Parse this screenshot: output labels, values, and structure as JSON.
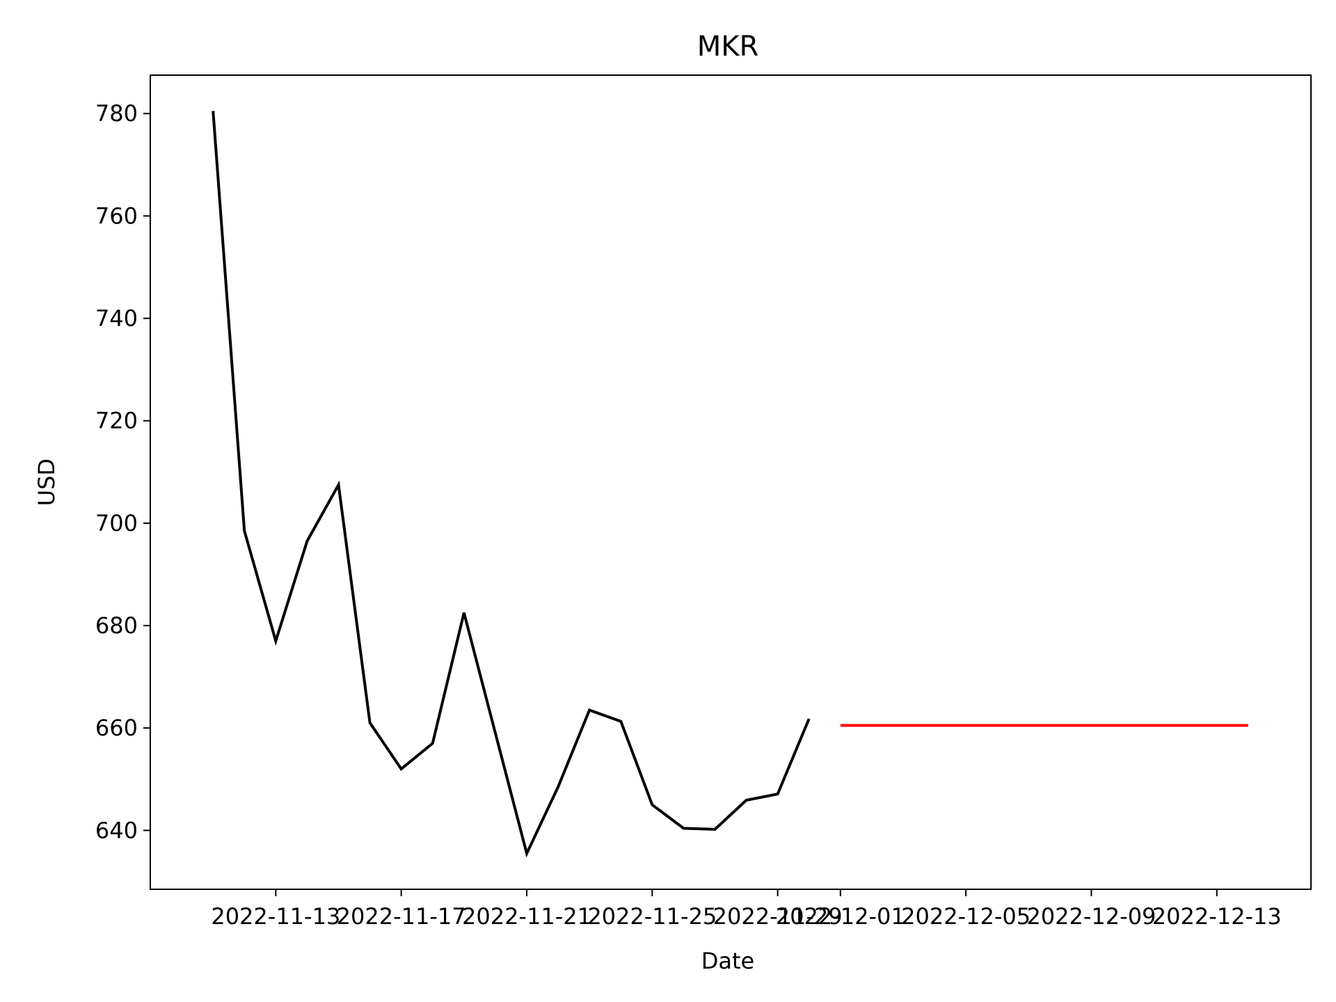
{
  "chart_data": {
    "type": "line",
    "title": "MKR",
    "xlabel": "Date",
    "ylabel": "USD",
    "xlim": [
      "2022-11-09",
      "2022-12-16"
    ],
    "ylim": [
      628.5,
      787.5
    ],
    "x_ticks": [
      "2022-11-13",
      "2022-11-17",
      "2022-11-21",
      "2022-11-25",
      "2022-11-29",
      "2022-12-01",
      "2022-12-05",
      "2022-12-09",
      "2022-12-13"
    ],
    "y_ticks": [
      640,
      660,
      680,
      700,
      720,
      740,
      760,
      780
    ],
    "grid": false,
    "legend": "none",
    "series": [
      {
        "color": "#000000",
        "x": [
          "2022-11-11",
          "2022-11-12",
          "2022-11-13",
          "2022-11-14",
          "2022-11-15",
          "2022-11-16",
          "2022-11-17",
          "2022-11-18",
          "2022-11-19",
          "2022-11-20",
          "2022-11-21",
          "2022-11-22",
          "2022-11-23",
          "2022-11-24",
          "2022-11-25",
          "2022-11-26",
          "2022-11-27",
          "2022-11-28",
          "2022-11-29",
          "2022-11-30"
        ],
        "values": [
          780.5,
          698.5,
          677.0,
          696.5,
          707.5,
          661.0,
          652.0,
          657.0,
          682.5,
          659.0,
          635.5,
          648.5,
          663.5,
          661.3,
          645.0,
          640.4,
          640.2,
          645.9,
          647.1,
          661.8
        ]
      },
      {
        "color": "#ff0000",
        "x": [
          "2022-12-01",
          "2022-12-14"
        ],
        "values": [
          660.5,
          660.5
        ]
      }
    ]
  }
}
